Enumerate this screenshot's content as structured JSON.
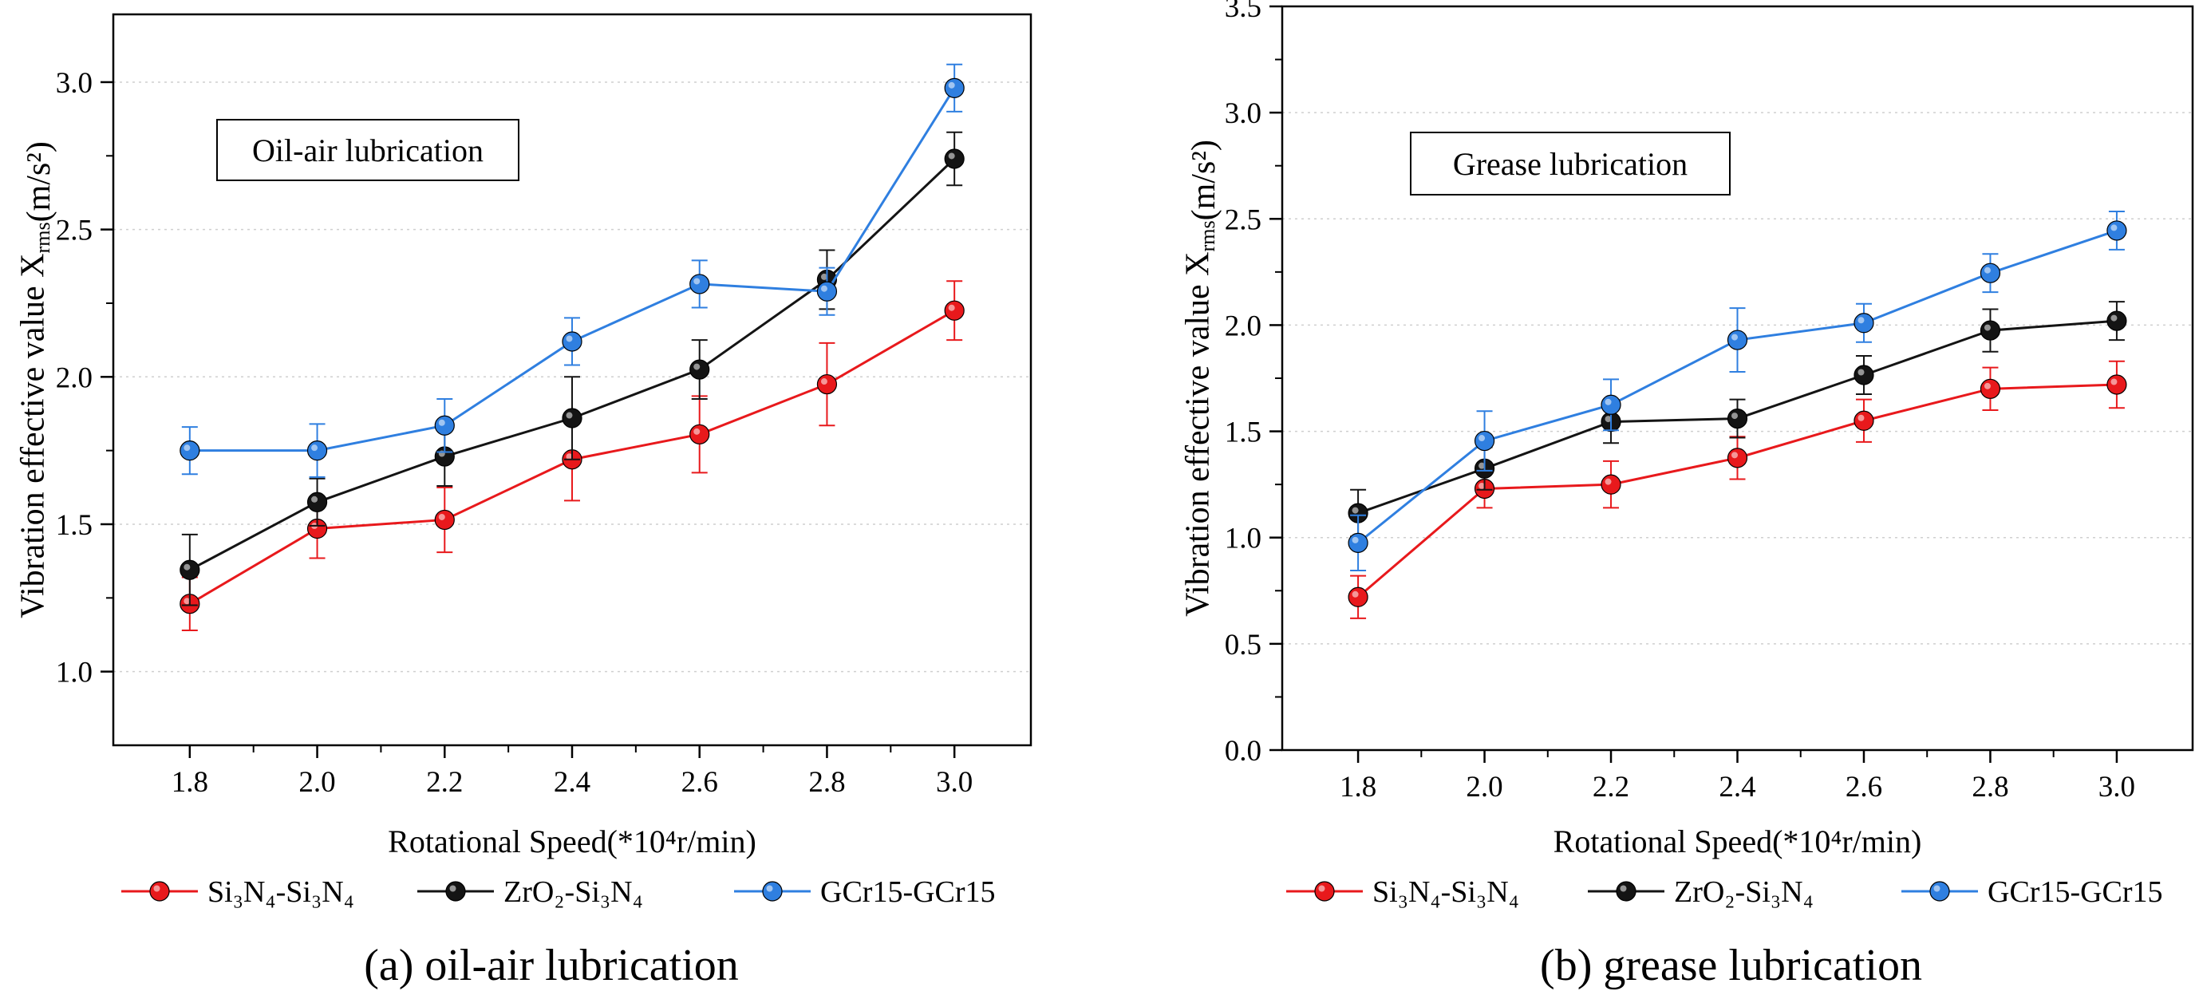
{
  "colors": {
    "Si3N4-Si3N4": "#e8191c",
    "ZrO2-Si3N4": "#141414",
    "GCr15-GCr15": "#2f7fe0"
  },
  "icons": [
    "circle-marker-icon"
  ],
  "chart_data": [
    {
      "type": "line",
      "title": "Oil-air lubrication",
      "caption": "(a) oil-air lubrication",
      "xlabel": "Rotational Speed(*10⁴r/min)",
      "ylabel": "Vibration effective value X_rms(m/s²)",
      "x": [
        1.8,
        2.0,
        2.2,
        2.4,
        2.6,
        2.8,
        3.0
      ],
      "x_ticks": [
        "1.8",
        "2.0",
        "2.2",
        "2.4",
        "2.6",
        "2.8",
        "3.0"
      ],
      "ylim": [
        0.75,
        3.23
      ],
      "y_ticks": [
        "1.0",
        "1.5",
        "2.0",
        "2.5",
        "3.0"
      ],
      "y_tick_values": [
        1.0,
        1.5,
        2.0,
        2.5,
        3.0
      ],
      "grid": "horizontal dotted",
      "legend_position": "bottom",
      "series": [
        {
          "name": "Si₃N₄-Si₃N₄",
          "color": "#e8191c",
          "values": [
            1.23,
            1.485,
            1.515,
            1.72,
            1.805,
            1.975,
            2.225
          ],
          "errors": [
            0.09,
            0.1,
            0.11,
            0.14,
            0.13,
            0.14,
            0.1
          ]
        },
        {
          "name": "ZrO₂-Si₃N₄",
          "color": "#141414",
          "values": [
            1.345,
            1.575,
            1.73,
            1.86,
            2.025,
            2.33,
            2.74
          ],
          "errors": [
            0.12,
            0.08,
            0.1,
            0.14,
            0.1,
            0.1,
            0.09
          ]
        },
        {
          "name": "GCr15-GCr15",
          "color": "#2f7fe0",
          "values": [
            1.75,
            1.75,
            1.835,
            2.12,
            2.315,
            2.29,
            2.98
          ],
          "errors": [
            0.08,
            0.09,
            0.09,
            0.08,
            0.08,
            0.08,
            0.08
          ]
        }
      ]
    },
    {
      "type": "line",
      "title": "Grease lubrication",
      "caption": "(b) grease lubrication",
      "xlabel": "Rotational Speed(*10⁴r/min)",
      "ylabel": "Vibration effective value X_rms(m/s²)",
      "x": [
        1.8,
        2.0,
        2.2,
        2.4,
        2.6,
        2.8,
        3.0
      ],
      "x_ticks": [
        "1.8",
        "2.0",
        "2.2",
        "2.4",
        "2.6",
        "2.8",
        "3.0"
      ],
      "ylim": [
        0.0,
        3.5
      ],
      "y_ticks": [
        "0.0",
        "0.5",
        "1.0",
        "1.5",
        "2.0",
        "2.5",
        "3.0",
        "3.5"
      ],
      "y_tick_values": [
        0.0,
        0.5,
        1.0,
        1.5,
        2.0,
        2.5,
        3.0,
        3.5
      ],
      "grid": "horizontal dotted",
      "legend_position": "bottom",
      "series": [
        {
          "name": "Si₃N₄-Si₃N₄",
          "color": "#e8191c",
          "values": [
            0.72,
            1.23,
            1.25,
            1.375,
            1.55,
            1.7,
            1.72
          ],
          "errors": [
            0.1,
            0.09,
            0.11,
            0.1,
            0.1,
            0.1,
            0.11
          ]
        },
        {
          "name": "ZrO₂-Si₃N₄",
          "color": "#141414",
          "values": [
            1.115,
            1.325,
            1.545,
            1.56,
            1.765,
            1.975,
            2.02
          ],
          "errors": [
            0.11,
            0.1,
            0.1,
            0.09,
            0.09,
            0.1,
            0.09
          ]
        },
        {
          "name": "GCr15-GCr15",
          "color": "#2f7fe0",
          "values": [
            0.975,
            1.455,
            1.625,
            1.93,
            2.01,
            2.245,
            2.445
          ],
          "errors": [
            0.13,
            0.14,
            0.12,
            0.15,
            0.09,
            0.09,
            0.09
          ]
        }
      ]
    }
  ]
}
